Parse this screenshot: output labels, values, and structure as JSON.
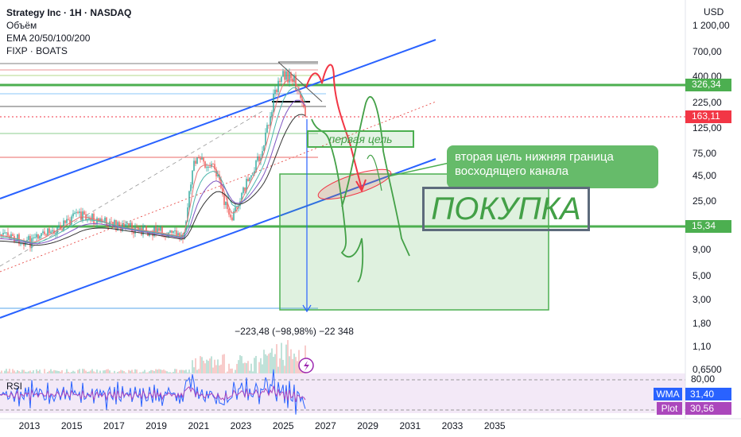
{
  "header": {
    "title": "Strategy Inc · 1H · NASDAQ",
    "lines": [
      "Объём",
      "EMA 20/50/100/200",
      "FIXP · BOATS"
    ]
  },
  "price_axis": {
    "currency": "USD",
    "labels": [
      "1 200,00",
      "700,00",
      "400,00",
      "225,00",
      "125,00",
      "75,00",
      "45,00",
      "25,00",
      "9,00",
      "5,00",
      "3,00",
      "1,80",
      "1,10",
      "0,6500"
    ]
  },
  "price_tags": [
    {
      "text": "326,34",
      "color": "#4caf50"
    },
    {
      "text": "163,11",
      "color": "#f23645"
    },
    {
      "text": "15,34",
      "color": "#4caf50"
    }
  ],
  "time_axis": {
    "labels": [
      "2013",
      "2015",
      "2017",
      "2019",
      "2021",
      "2023",
      "2025",
      "2027",
      "2029",
      "2031",
      "2033",
      "2035"
    ]
  },
  "annotations": {
    "first_target": "первая цель",
    "second_target": "вторая цель нижняя граница восходящего канала",
    "buy": "ПОКУПКА",
    "measure": "−223,48 (−98,98%) −22 348"
  },
  "rsi": {
    "label": "RSI",
    "axis_label": "80,00",
    "wma": {
      "name": "WMA",
      "value": "31,40"
    },
    "plot": {
      "name": "Plot",
      "value": "30,56"
    }
  }
}
